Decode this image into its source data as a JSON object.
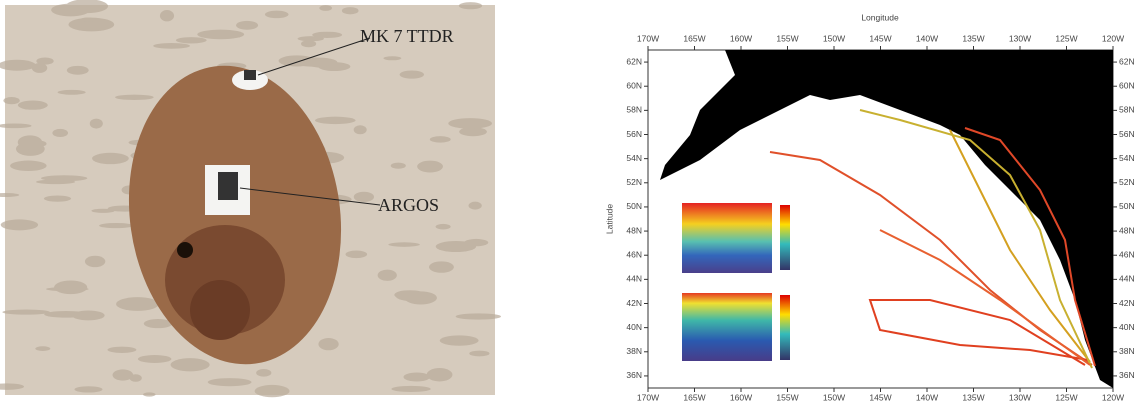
{
  "photo": {
    "labels": [
      "MK 7 TTDR",
      "ARGOS"
    ]
  },
  "chart_data": {
    "type": "map",
    "xlabel": "Longitude",
    "ylabel": "Latitude",
    "xlim": [
      -170,
      -120
    ],
    "ylim": [
      35,
      63
    ],
    "xticks": [
      {
        "value": -170,
        "label": "170W"
      },
      {
        "value": -165,
        "label": "165W"
      },
      {
        "value": -160,
        "label": "160W"
      },
      {
        "value": -155,
        "label": "155W"
      },
      {
        "value": -150,
        "label": "150W"
      },
      {
        "value": -145,
        "label": "145W"
      },
      {
        "value": -140,
        "label": "140W"
      },
      {
        "value": -135,
        "label": "135W"
      },
      {
        "value": -130,
        "label": "130W"
      },
      {
        "value": -125,
        "label": "125W"
      },
      {
        "value": -120,
        "label": "120W"
      }
    ],
    "yticks": [
      {
        "value": 36,
        "label": "36N"
      },
      {
        "value": 38,
        "label": "38N"
      },
      {
        "value": 40,
        "label": "40N"
      },
      {
        "value": 42,
        "label": "42N"
      },
      {
        "value": 44,
        "label": "44N"
      },
      {
        "value": 46,
        "label": "46N"
      },
      {
        "value": 48,
        "label": "48N"
      },
      {
        "value": 50,
        "label": "50N"
      },
      {
        "value": 52,
        "label": "52N"
      },
      {
        "value": 54,
        "label": "54N"
      },
      {
        "value": 56,
        "label": "56N"
      },
      {
        "value": 58,
        "label": "58N"
      },
      {
        "value": 60,
        "label": "60N"
      },
      {
        "value": 62,
        "label": "62N"
      }
    ]
  }
}
